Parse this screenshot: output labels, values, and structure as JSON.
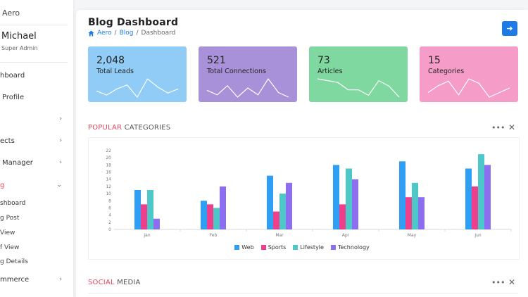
{
  "sidebar": {
    "brand": "Aero",
    "user_name": "Michael",
    "user_role": "Super Admin",
    "items": [
      {
        "label": "hboard",
        "has_chevron": false
      },
      {
        "label": "Profile",
        "has_chevron": false
      },
      {
        "label": "",
        "has_chevron": true
      },
      {
        "label": "ects",
        "has_chevron": true
      },
      {
        "label": "Manager",
        "has_chevron": true
      },
      {
        "label": "g",
        "has_chevron": true,
        "active": true
      },
      {
        "label": "mmerce",
        "has_chevron": true
      }
    ],
    "sub_items": [
      "shboard",
      "g Post",
      "View",
      "f View",
      "g Details"
    ]
  },
  "header": {
    "title": "Blog Dashboard",
    "breadcrumb": [
      "Aero",
      "Blog",
      "Dashboard"
    ],
    "breadcrumb_sep": "/"
  },
  "stats": [
    {
      "value": "2,048",
      "label": "Total Leads",
      "color": "#90ccf5",
      "spark": [
        6,
        4,
        7,
        9,
        3,
        12,
        8,
        5,
        7
      ]
    },
    {
      "value": "521",
      "label": "Total Connections",
      "color": "#a991d9",
      "spark": [
        6,
        4,
        8,
        3,
        7,
        4,
        11,
        5,
        3
      ]
    },
    {
      "value": "73",
      "label": "Articles",
      "color": "#7fd8a0",
      "spark": [
        12,
        11,
        10,
        6,
        6,
        3,
        11,
        8,
        2
      ]
    },
    {
      "value": "15",
      "label": "Categories",
      "color": "#f59cc8",
      "spark": [
        4,
        7,
        9,
        3,
        10,
        8,
        2,
        4,
        6
      ]
    }
  ],
  "sections": {
    "popular_accent": "POPULAR",
    "popular_rest": " CATEGORIES",
    "social_accent": "SOCIAL",
    "social_rest": " MEDIA"
  },
  "chart_data": {
    "type": "bar",
    "categories": [
      "Jan",
      "Feb",
      "Mar",
      "Apr",
      "May",
      "Jun"
    ],
    "series": [
      {
        "name": "Web",
        "color": "#2f9ef5",
        "values": [
          11,
          8,
          15,
          18,
          19,
          17
        ]
      },
      {
        "name": "Sports",
        "color": "#ee3f8c",
        "values": [
          7,
          7,
          5,
          7,
          9,
          12
        ]
      },
      {
        "name": "Lifestyle",
        "color": "#4ec7c9",
        "values": [
          11,
          6,
          10,
          17,
          13,
          21
        ]
      },
      {
        "name": "Technology",
        "color": "#8b6ff0",
        "values": [
          3,
          12,
          13,
          14,
          9,
          18
        ]
      }
    ],
    "ylim": [
      0,
      22
    ],
    "yticks": [
      0,
      2,
      4,
      6,
      8,
      10,
      12,
      14,
      16,
      18,
      20,
      22
    ],
    "grid": false,
    "legend": "bottom"
  },
  "icons": {
    "go": "arrow-right-icon",
    "more": "more-dots-icon",
    "close": "close-icon",
    "home": "home-icon"
  }
}
